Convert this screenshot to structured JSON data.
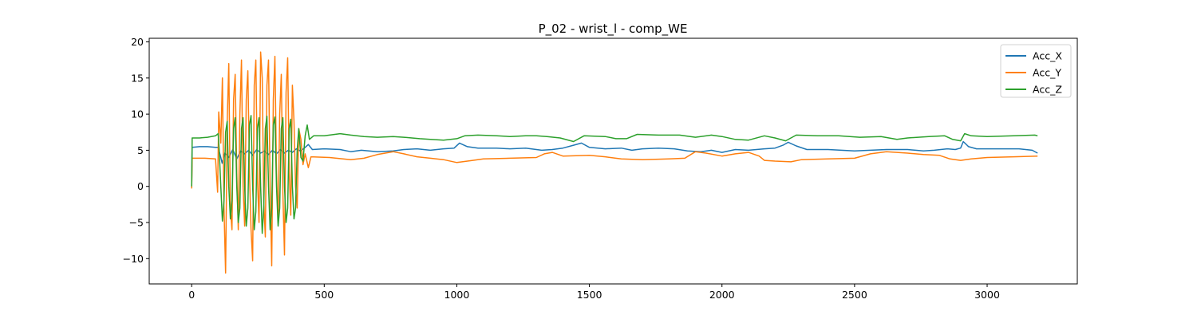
{
  "chart_data": {
    "type": "line",
    "title": "P_02 - wrist_l - comp_WE",
    "xlabel": "",
    "ylabel": "",
    "xlim": [
      -160,
      3340
    ],
    "ylim": [
      -13.5,
      20.5
    ],
    "xticks": [
      0,
      500,
      1000,
      1500,
      2000,
      2500,
      3000
    ],
    "xtick_labels": [
      "0",
      "500",
      "1000",
      "1500",
      "2000",
      "2500",
      "3000"
    ],
    "yticks": [
      -10,
      -5,
      0,
      5,
      10,
      15,
      20
    ],
    "ytick_labels": [
      "−10",
      "−5",
      "0",
      "5",
      "10",
      "15",
      "20"
    ],
    "grid": false,
    "legend": "top-right",
    "series": [
      {
        "name": "Acc_X",
        "color": "#1f77b4",
        "points": [
          [
            0,
            0
          ],
          [
            2,
            5.4
          ],
          [
            30,
            5.5
          ],
          [
            60,
            5.5
          ],
          [
            90,
            5.4
          ],
          [
            100,
            5.4
          ],
          [
            110,
            4.0
          ],
          [
            115,
            3.2
          ],
          [
            125,
            4.6
          ],
          [
            140,
            4.0
          ],
          [
            155,
            5.1
          ],
          [
            170,
            3.8
          ],
          [
            185,
            4.9
          ],
          [
            200,
            4.5
          ],
          [
            215,
            5.0
          ],
          [
            230,
            4.3
          ],
          [
            245,
            5.1
          ],
          [
            260,
            4.6
          ],
          [
            275,
            4.9
          ],
          [
            290,
            4.4
          ],
          [
            305,
            5.0
          ],
          [
            320,
            4.5
          ],
          [
            335,
            5.1
          ],
          [
            350,
            4.6
          ],
          [
            365,
            5.0
          ],
          [
            380,
            4.7
          ],
          [
            395,
            5.2
          ],
          [
            410,
            4.9
          ],
          [
            425,
            5.3
          ],
          [
            440,
            5.8
          ],
          [
            455,
            5.1
          ],
          [
            500,
            5.2
          ],
          [
            560,
            5.1
          ],
          [
            600,
            4.8
          ],
          [
            640,
            5.0
          ],
          [
            700,
            4.8
          ],
          [
            760,
            4.9
          ],
          [
            800,
            5.1
          ],
          [
            850,
            5.2
          ],
          [
            900,
            5.0
          ],
          [
            950,
            5.2
          ],
          [
            990,
            5.3
          ],
          [
            1010,
            6.0
          ],
          [
            1040,
            5.5
          ],
          [
            1080,
            5.3
          ],
          [
            1150,
            5.3
          ],
          [
            1200,
            5.2
          ],
          [
            1260,
            5.3
          ],
          [
            1320,
            5.0
          ],
          [
            1360,
            5.1
          ],
          [
            1400,
            5.3
          ],
          [
            1440,
            5.7
          ],
          [
            1470,
            6.0
          ],
          [
            1500,
            5.4
          ],
          [
            1560,
            5.2
          ],
          [
            1620,
            5.3
          ],
          [
            1660,
            5.0
          ],
          [
            1700,
            5.2
          ],
          [
            1760,
            5.3
          ],
          [
            1820,
            5.2
          ],
          [
            1870,
            4.9
          ],
          [
            1920,
            4.8
          ],
          [
            1960,
            5.0
          ],
          [
            2000,
            4.7
          ],
          [
            2050,
            5.1
          ],
          [
            2100,
            5.0
          ],
          [
            2160,
            5.2
          ],
          [
            2200,
            5.3
          ],
          [
            2230,
            5.7
          ],
          [
            2250,
            6.1
          ],
          [
            2280,
            5.6
          ],
          [
            2320,
            5.1
          ],
          [
            2400,
            5.1
          ],
          [
            2450,
            5.0
          ],
          [
            2500,
            4.9
          ],
          [
            2560,
            5.0
          ],
          [
            2620,
            5.1
          ],
          [
            2700,
            5.1
          ],
          [
            2760,
            4.9
          ],
          [
            2800,
            5.0
          ],
          [
            2850,
            5.2
          ],
          [
            2880,
            5.1
          ],
          [
            2900,
            5.3
          ],
          [
            2910,
            6.2
          ],
          [
            2930,
            5.5
          ],
          [
            2960,
            5.2
          ],
          [
            3050,
            5.2
          ],
          [
            3120,
            5.2
          ],
          [
            3170,
            5.0
          ],
          [
            3190,
            4.6
          ]
        ]
      },
      {
        "name": "Acc_Y",
        "color": "#ff7f0e",
        "points": [
          [
            0,
            -0.3
          ],
          [
            2,
            3.9
          ],
          [
            50,
            3.9
          ],
          [
            90,
            3.8
          ],
          [
            98,
            -0.8
          ],
          [
            102,
            10.3
          ],
          [
            110,
            6.0
          ],
          [
            116,
            15.0
          ],
          [
            122,
            -3.0
          ],
          [
            128,
            -12.0
          ],
          [
            134,
            9.0
          ],
          [
            140,
            17.0
          ],
          [
            146,
            -3.0
          ],
          [
            152,
            -6.0
          ],
          [
            158,
            12.0
          ],
          [
            164,
            15.5
          ],
          [
            170,
            2.0
          ],
          [
            176,
            -6.0
          ],
          [
            182,
            10.0
          ],
          [
            188,
            17.5
          ],
          [
            194,
            0.0
          ],
          [
            200,
            -5.5
          ],
          [
            206,
            12.0
          ],
          [
            212,
            16.0
          ],
          [
            218,
            2.0
          ],
          [
            224,
            -6.0
          ],
          [
            230,
            -10.3
          ],
          [
            236,
            14.0
          ],
          [
            242,
            17.5
          ],
          [
            248,
            1.0
          ],
          [
            254,
            -5.0
          ],
          [
            260,
            18.6
          ],
          [
            266,
            15.0
          ],
          [
            272,
            -2.0
          ],
          [
            278,
            -7.0
          ],
          [
            284,
            14.0
          ],
          [
            290,
            17.5
          ],
          [
            296,
            0.0
          ],
          [
            302,
            -11.0
          ],
          [
            308,
            12.0
          ],
          [
            314,
            18.0
          ],
          [
            320,
            2.0
          ],
          [
            326,
            -5.0
          ],
          [
            332,
            10.0
          ],
          [
            338,
            15.5
          ],
          [
            344,
            -1.0
          ],
          [
            350,
            -9.5
          ],
          [
            356,
            13.0
          ],
          [
            362,
            17.8
          ],
          [
            368,
            2.0
          ],
          [
            374,
            -4.0
          ],
          [
            380,
            14.0
          ],
          [
            386,
            9.0
          ],
          [
            392,
            0.0
          ],
          [
            398,
            -3.0
          ],
          [
            404,
            8.0
          ],
          [
            412,
            6.5
          ],
          [
            420,
            3.0
          ],
          [
            428,
            4.5
          ],
          [
            440,
            2.6
          ],
          [
            450,
            4.1
          ],
          [
            520,
            4.0
          ],
          [
            600,
            3.7
          ],
          [
            650,
            3.9
          ],
          [
            700,
            4.4
          ],
          [
            760,
            4.8
          ],
          [
            800,
            4.5
          ],
          [
            850,
            4.1
          ],
          [
            900,
            3.9
          ],
          [
            950,
            3.7
          ],
          [
            1000,
            3.3
          ],
          [
            1060,
            3.6
          ],
          [
            1100,
            3.8
          ],
          [
            1200,
            3.9
          ],
          [
            1300,
            4.0
          ],
          [
            1330,
            4.5
          ],
          [
            1360,
            4.7
          ],
          [
            1400,
            4.2
          ],
          [
            1500,
            4.3
          ],
          [
            1560,
            4.1
          ],
          [
            1620,
            3.8
          ],
          [
            1700,
            3.7
          ],
          [
            1800,
            3.8
          ],
          [
            1860,
            3.9
          ],
          [
            1900,
            4.8
          ],
          [
            1940,
            4.6
          ],
          [
            2000,
            4.2
          ],
          [
            2050,
            4.5
          ],
          [
            2100,
            4.7
          ],
          [
            2140,
            4.2
          ],
          [
            2160,
            3.6
          ],
          [
            2200,
            3.5
          ],
          [
            2260,
            3.4
          ],
          [
            2300,
            3.7
          ],
          [
            2400,
            3.8
          ],
          [
            2500,
            3.9
          ],
          [
            2560,
            4.5
          ],
          [
            2620,
            4.8
          ],
          [
            2700,
            4.6
          ],
          [
            2760,
            4.4
          ],
          [
            2820,
            4.3
          ],
          [
            2860,
            3.8
          ],
          [
            2900,
            3.6
          ],
          [
            2940,
            3.8
          ],
          [
            3000,
            4.0
          ],
          [
            3100,
            4.1
          ],
          [
            3190,
            4.2
          ]
        ]
      },
      {
        "name": "Acc_Z",
        "color": "#2ca02c",
        "points": [
          [
            0,
            0
          ],
          [
            2,
            6.7
          ],
          [
            30,
            6.7
          ],
          [
            60,
            6.8
          ],
          [
            90,
            7.0
          ],
          [
            100,
            7.3
          ],
          [
            104,
            5.0
          ],
          [
            110,
            0.0
          ],
          [
            116,
            -4.8
          ],
          [
            122,
            -2.0
          ],
          [
            128,
            7.5
          ],
          [
            134,
            9.0
          ],
          [
            140,
            0.0
          ],
          [
            146,
            -4.5
          ],
          [
            152,
            -2.0
          ],
          [
            158,
            8.0
          ],
          [
            164,
            9.5
          ],
          [
            170,
            0.0
          ],
          [
            176,
            -5.0
          ],
          [
            182,
            -3.0
          ],
          [
            188,
            8.0
          ],
          [
            194,
            9.5
          ],
          [
            200,
            0.0
          ],
          [
            206,
            -5.5
          ],
          [
            212,
            -3.0
          ],
          [
            218,
            8.5
          ],
          [
            224,
            9.8
          ],
          [
            230,
            0.0
          ],
          [
            236,
            -6.0
          ],
          [
            242,
            -3.5
          ],
          [
            248,
            8.0
          ],
          [
            254,
            9.5
          ],
          [
            260,
            0.0
          ],
          [
            266,
            -6.5
          ],
          [
            272,
            -3.0
          ],
          [
            278,
            8.0
          ],
          [
            284,
            9.7
          ],
          [
            290,
            0.0
          ],
          [
            296,
            -6.0
          ],
          [
            302,
            -3.0
          ],
          [
            308,
            8.5
          ],
          [
            314,
            9.6
          ],
          [
            320,
            0.0
          ],
          [
            326,
            -5.5
          ],
          [
            332,
            -3.0
          ],
          [
            338,
            8.0
          ],
          [
            344,
            9.5
          ],
          [
            350,
            0.0
          ],
          [
            356,
            -5.0
          ],
          [
            362,
            -3.0
          ],
          [
            368,
            8.0
          ],
          [
            374,
            9.3
          ],
          [
            380,
            0.0
          ],
          [
            386,
            -4.5
          ],
          [
            392,
            -3.0
          ],
          [
            398,
            5.0
          ],
          [
            404,
            8.0
          ],
          [
            412,
            4.0
          ],
          [
            420,
            3.5
          ],
          [
            428,
            7.0
          ],
          [
            436,
            8.5
          ],
          [
            444,
            6.5
          ],
          [
            460,
            7.0
          ],
          [
            500,
            7.0
          ],
          [
            560,
            7.3
          ],
          [
            600,
            7.1
          ],
          [
            650,
            6.9
          ],
          [
            700,
            6.8
          ],
          [
            760,
            6.9
          ],
          [
            800,
            6.8
          ],
          [
            860,
            6.6
          ],
          [
            900,
            6.5
          ],
          [
            950,
            6.4
          ],
          [
            1000,
            6.6
          ],
          [
            1030,
            7.0
          ],
          [
            1080,
            7.1
          ],
          [
            1150,
            7.0
          ],
          [
            1200,
            6.9
          ],
          [
            1260,
            7.0
          ],
          [
            1300,
            7.0
          ],
          [
            1340,
            6.9
          ],
          [
            1390,
            6.7
          ],
          [
            1440,
            6.2
          ],
          [
            1480,
            7.0
          ],
          [
            1560,
            6.9
          ],
          [
            1600,
            6.6
          ],
          [
            1640,
            6.6
          ],
          [
            1680,
            7.2
          ],
          [
            1760,
            7.1
          ],
          [
            1840,
            7.1
          ],
          [
            1900,
            6.8
          ],
          [
            1960,
            7.1
          ],
          [
            2000,
            6.9
          ],
          [
            2050,
            6.5
          ],
          [
            2100,
            6.4
          ],
          [
            2160,
            7.0
          ],
          [
            2200,
            6.7
          ],
          [
            2240,
            6.3
          ],
          [
            2280,
            7.1
          ],
          [
            2360,
            7.0
          ],
          [
            2440,
            7.0
          ],
          [
            2520,
            6.8
          ],
          [
            2600,
            6.9
          ],
          [
            2660,
            6.5
          ],
          [
            2700,
            6.7
          ],
          [
            2780,
            6.9
          ],
          [
            2840,
            7.0
          ],
          [
            2870,
            6.5
          ],
          [
            2900,
            6.3
          ],
          [
            2915,
            7.3
          ],
          [
            2940,
            7.0
          ],
          [
            3000,
            6.9
          ],
          [
            3100,
            7.0
          ],
          [
            3180,
            7.1
          ],
          [
            3190,
            7.0
          ]
        ]
      }
    ]
  }
}
